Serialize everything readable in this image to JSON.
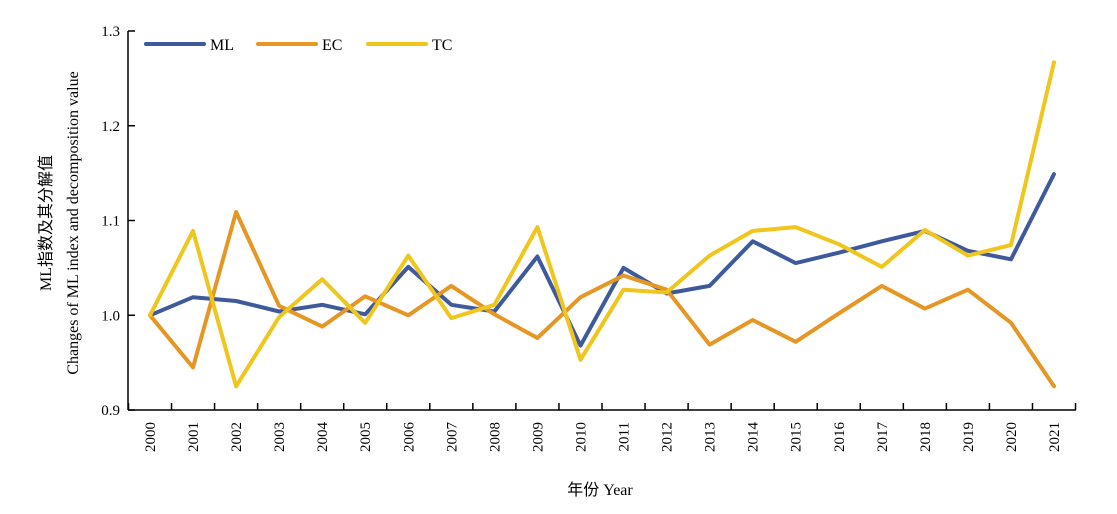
{
  "chart_data": {
    "type": "line",
    "xlabel": "年份 Year",
    "ylabel": [
      "ML指数及其分解值",
      "Changes of ML index and decomposition value"
    ],
    "ylim": [
      0.9,
      1.3
    ],
    "yticks": [
      "0.9",
      "1.0",
      "1.1",
      "1.2",
      "1.3"
    ],
    "ytick_values": [
      0.9,
      1.0,
      1.1,
      1.2,
      1.3
    ],
    "grid": false,
    "legend_position": "top-left",
    "categories": [
      "2000",
      "2001",
      "2002",
      "2003",
      "2004",
      "2005",
      "2006",
      "2007",
      "2008",
      "2009",
      "2010",
      "2011",
      "2012",
      "2013",
      "2014",
      "2015",
      "2016",
      "2017",
      "2018",
      "2019",
      "2020",
      "2021"
    ],
    "series": [
      {
        "name": "ML",
        "color": "#3f5a9c",
        "values": [
          1.0,
          1.019,
          1.015,
          1.004,
          1.011,
          1.001,
          1.051,
          1.011,
          1.004,
          1.062,
          0.968,
          1.05,
          1.023,
          1.031,
          1.078,
          1.055,
          1.066,
          1.078,
          1.089,
          1.068,
          1.059,
          1.149
        ]
      },
      {
        "name": "EC",
        "color": "#e69622",
        "values": [
          1.0,
          0.945,
          1.109,
          1.01,
          0.988,
          1.02,
          1.0,
          1.031,
          1.001,
          0.976,
          1.019,
          1.042,
          1.027,
          0.969,
          0.995,
          0.972,
          1.002,
          1.031,
          1.007,
          1.027,
          0.992,
          0.925
        ]
      },
      {
        "name": "TC",
        "color": "#f0c51c",
        "values": [
          1.0,
          1.089,
          0.925,
          0.998,
          1.038,
          0.992,
          1.063,
          0.997,
          1.011,
          1.093,
          0.953,
          1.027,
          1.024,
          1.063,
          1.089,
          1.093,
          1.075,
          1.051,
          1.09,
          1.063,
          1.074,
          1.267
        ]
      }
    ]
  }
}
